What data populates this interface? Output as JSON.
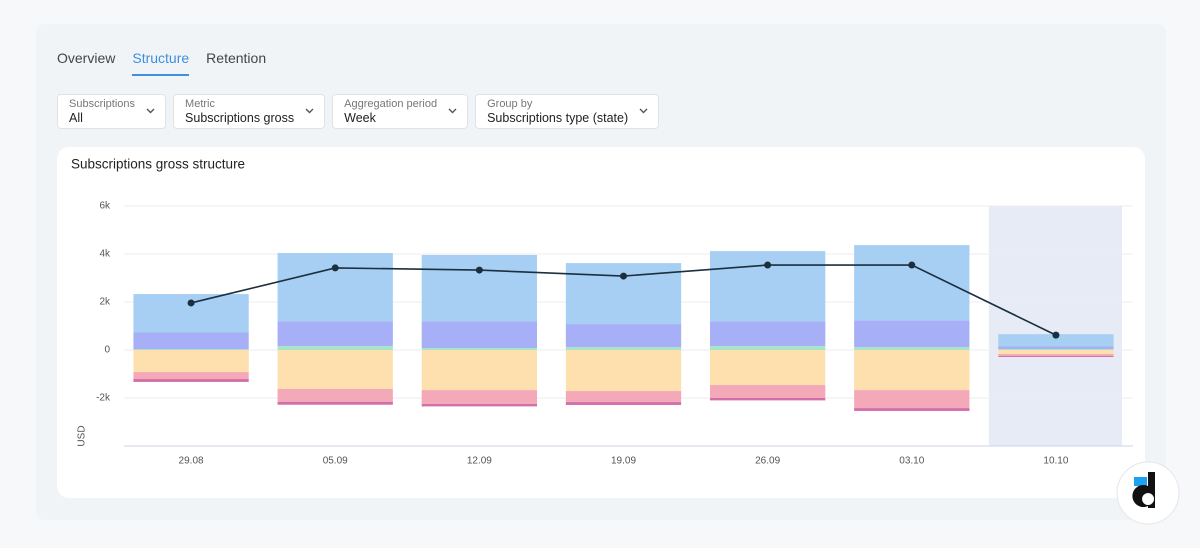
{
  "tabs": [
    {
      "label": "Overview"
    },
    {
      "label": "Structure",
      "active": true
    },
    {
      "label": "Retention"
    }
  ],
  "filters": [
    {
      "label": "Subscriptions",
      "value": "All"
    },
    {
      "label": "Metric",
      "value": "Subscriptions gross"
    },
    {
      "label": "Aggregation period",
      "value": "Week"
    },
    {
      "label": "Group by",
      "value": "Subscriptions type (state)"
    }
  ],
  "chart_data": {
    "type": "bar",
    "title": "Subscriptions gross structure",
    "y_label": "USD",
    "categories": [
      "29.08",
      "05.09",
      "12.09",
      "19.09",
      "26.09",
      "03.10",
      "10.10"
    ],
    "ylim": [
      -4000,
      6000
    ],
    "yticks": [
      {
        "value": -2000,
        "label": "-2k"
      },
      0,
      {
        "value": 2000,
        "label": "2k"
      },
      {
        "value": 4000,
        "label": "4k"
      },
      {
        "value": 6000,
        "label": "6k"
      }
    ],
    "grid": true,
    "highlight_category": "10.10",
    "series": [
      {
        "color": "#a6e6c6",
        "values": [
          30,
          160,
          80,
          120,
          160,
          120,
          40
        ]
      },
      {
        "color": "#a7b0f7",
        "values": [
          700,
          1040,
          1120,
          960,
          1040,
          1120,
          120
        ]
      },
      {
        "color": "#a6cff3",
        "values": [
          1600,
          2840,
          2760,
          2540,
          2920,
          3130,
          500
        ]
      },
      {
        "color": "#fde0ad",
        "values": [
          -920,
          -1620,
          -1670,
          -1710,
          -1460,
          -1670,
          -170
        ]
      },
      {
        "color": "#f4a9b8",
        "values": [
          -290,
          -540,
          -580,
          -460,
          -540,
          -750,
          -80
        ]
      },
      {
        "color": "#d36fa8",
        "values": [
          -120,
          -120,
          -100,
          -120,
          -100,
          -120,
          -40
        ]
      },
      {
        "type": "line",
        "color": "#1b2f3f",
        "values": [
          1960,
          3420,
          3330,
          3080,
          3540,
          3540,
          620
        ]
      }
    ]
  }
}
